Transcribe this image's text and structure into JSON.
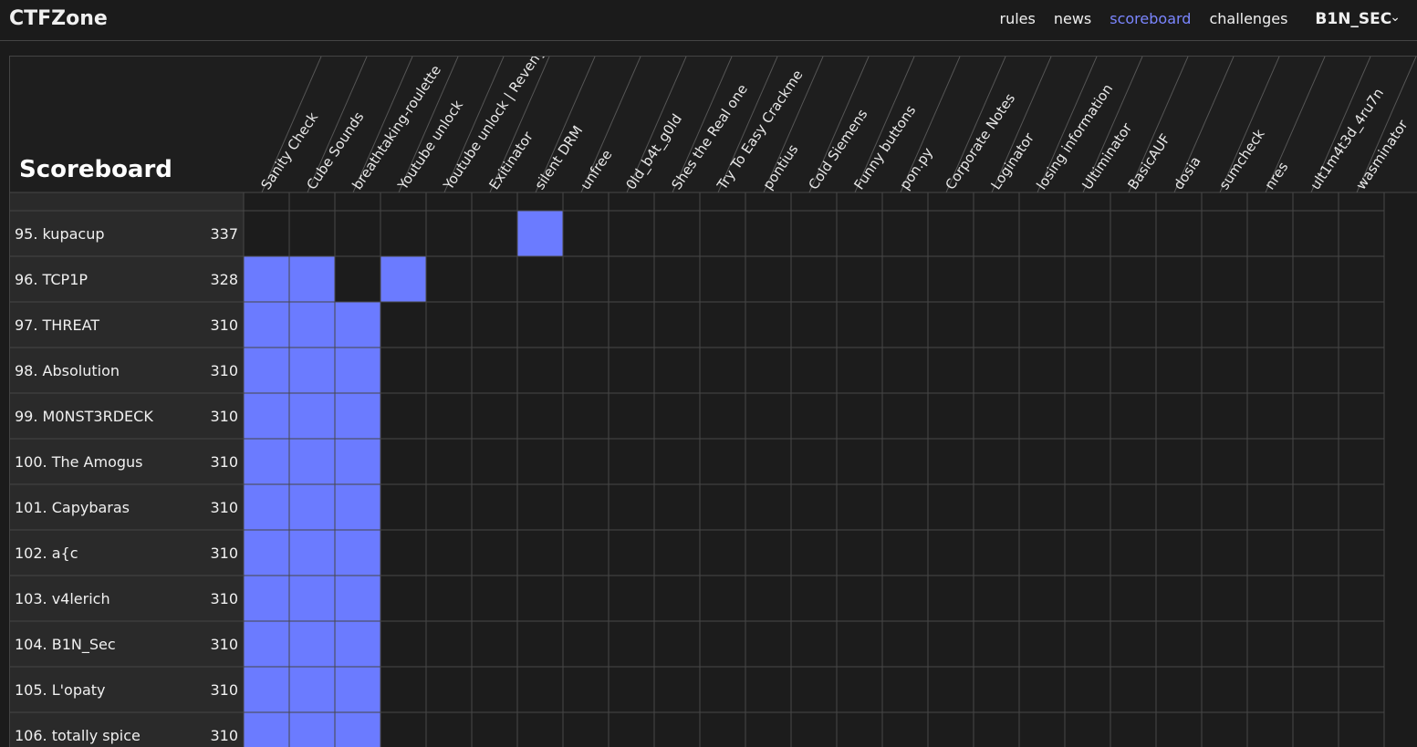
{
  "header": {
    "brand": "CTFZone",
    "links": [
      "rules",
      "news",
      "scoreboard",
      "challenges"
    ],
    "active_link": 2,
    "user": "B1N_SEC"
  },
  "scoreboard": {
    "title": "Scoreboard",
    "challenges": [
      "Sanity Check",
      "Cube Sounds",
      "breathtaking-roulette",
      "Youtube unlock",
      "Youtube unlock | Revenge",
      "Exitinator",
      "silent DRM",
      "unfree",
      "0ld_b4t_g0ld",
      "Shes the Real one",
      "Try To Easy Crackme",
      "pontius",
      "Cold Siemens",
      "Funny buttons",
      "pon.py",
      "Corporate Notes",
      "Loginator",
      "losing information",
      "Ultiminator",
      "BasicAUF",
      "dosia",
      "sumcheck",
      "nres",
      "ult1m4t3d_4ru7n",
      "wasminator"
    ],
    "rows": [
      {
        "team": "95. kupacup",
        "score": 337,
        "solved": [
          6
        ]
      },
      {
        "team": "96. TCP1P",
        "score": 328,
        "solved": [
          0,
          1,
          3
        ]
      },
      {
        "team": "97. THREAT",
        "score": 310,
        "solved": [
          0,
          1,
          2
        ]
      },
      {
        "team": "98. Absolution",
        "score": 310,
        "solved": [
          0,
          1,
          2
        ]
      },
      {
        "team": "99. M0NST3RDECK",
        "score": 310,
        "solved": [
          0,
          1,
          2
        ]
      },
      {
        "team": "100. The Amogus",
        "score": 310,
        "solved": [
          0,
          1,
          2
        ]
      },
      {
        "team": "101. Capybaras",
        "score": 310,
        "solved": [
          0,
          1,
          2
        ]
      },
      {
        "team": "102. a{c",
        "score": 310,
        "solved": [
          0,
          1,
          2
        ]
      },
      {
        "team": "103. v4lerich",
        "score": 310,
        "solved": [
          0,
          1,
          2
        ]
      },
      {
        "team": "104. B1N_Sec",
        "score": 310,
        "solved": [
          0,
          1,
          2
        ]
      },
      {
        "team": "105. L'opaty",
        "score": 310,
        "solved": [
          0,
          1,
          2
        ]
      },
      {
        "team": "106. totally spice",
        "score": 310,
        "solved": [
          0,
          1,
          2
        ]
      }
    ]
  }
}
